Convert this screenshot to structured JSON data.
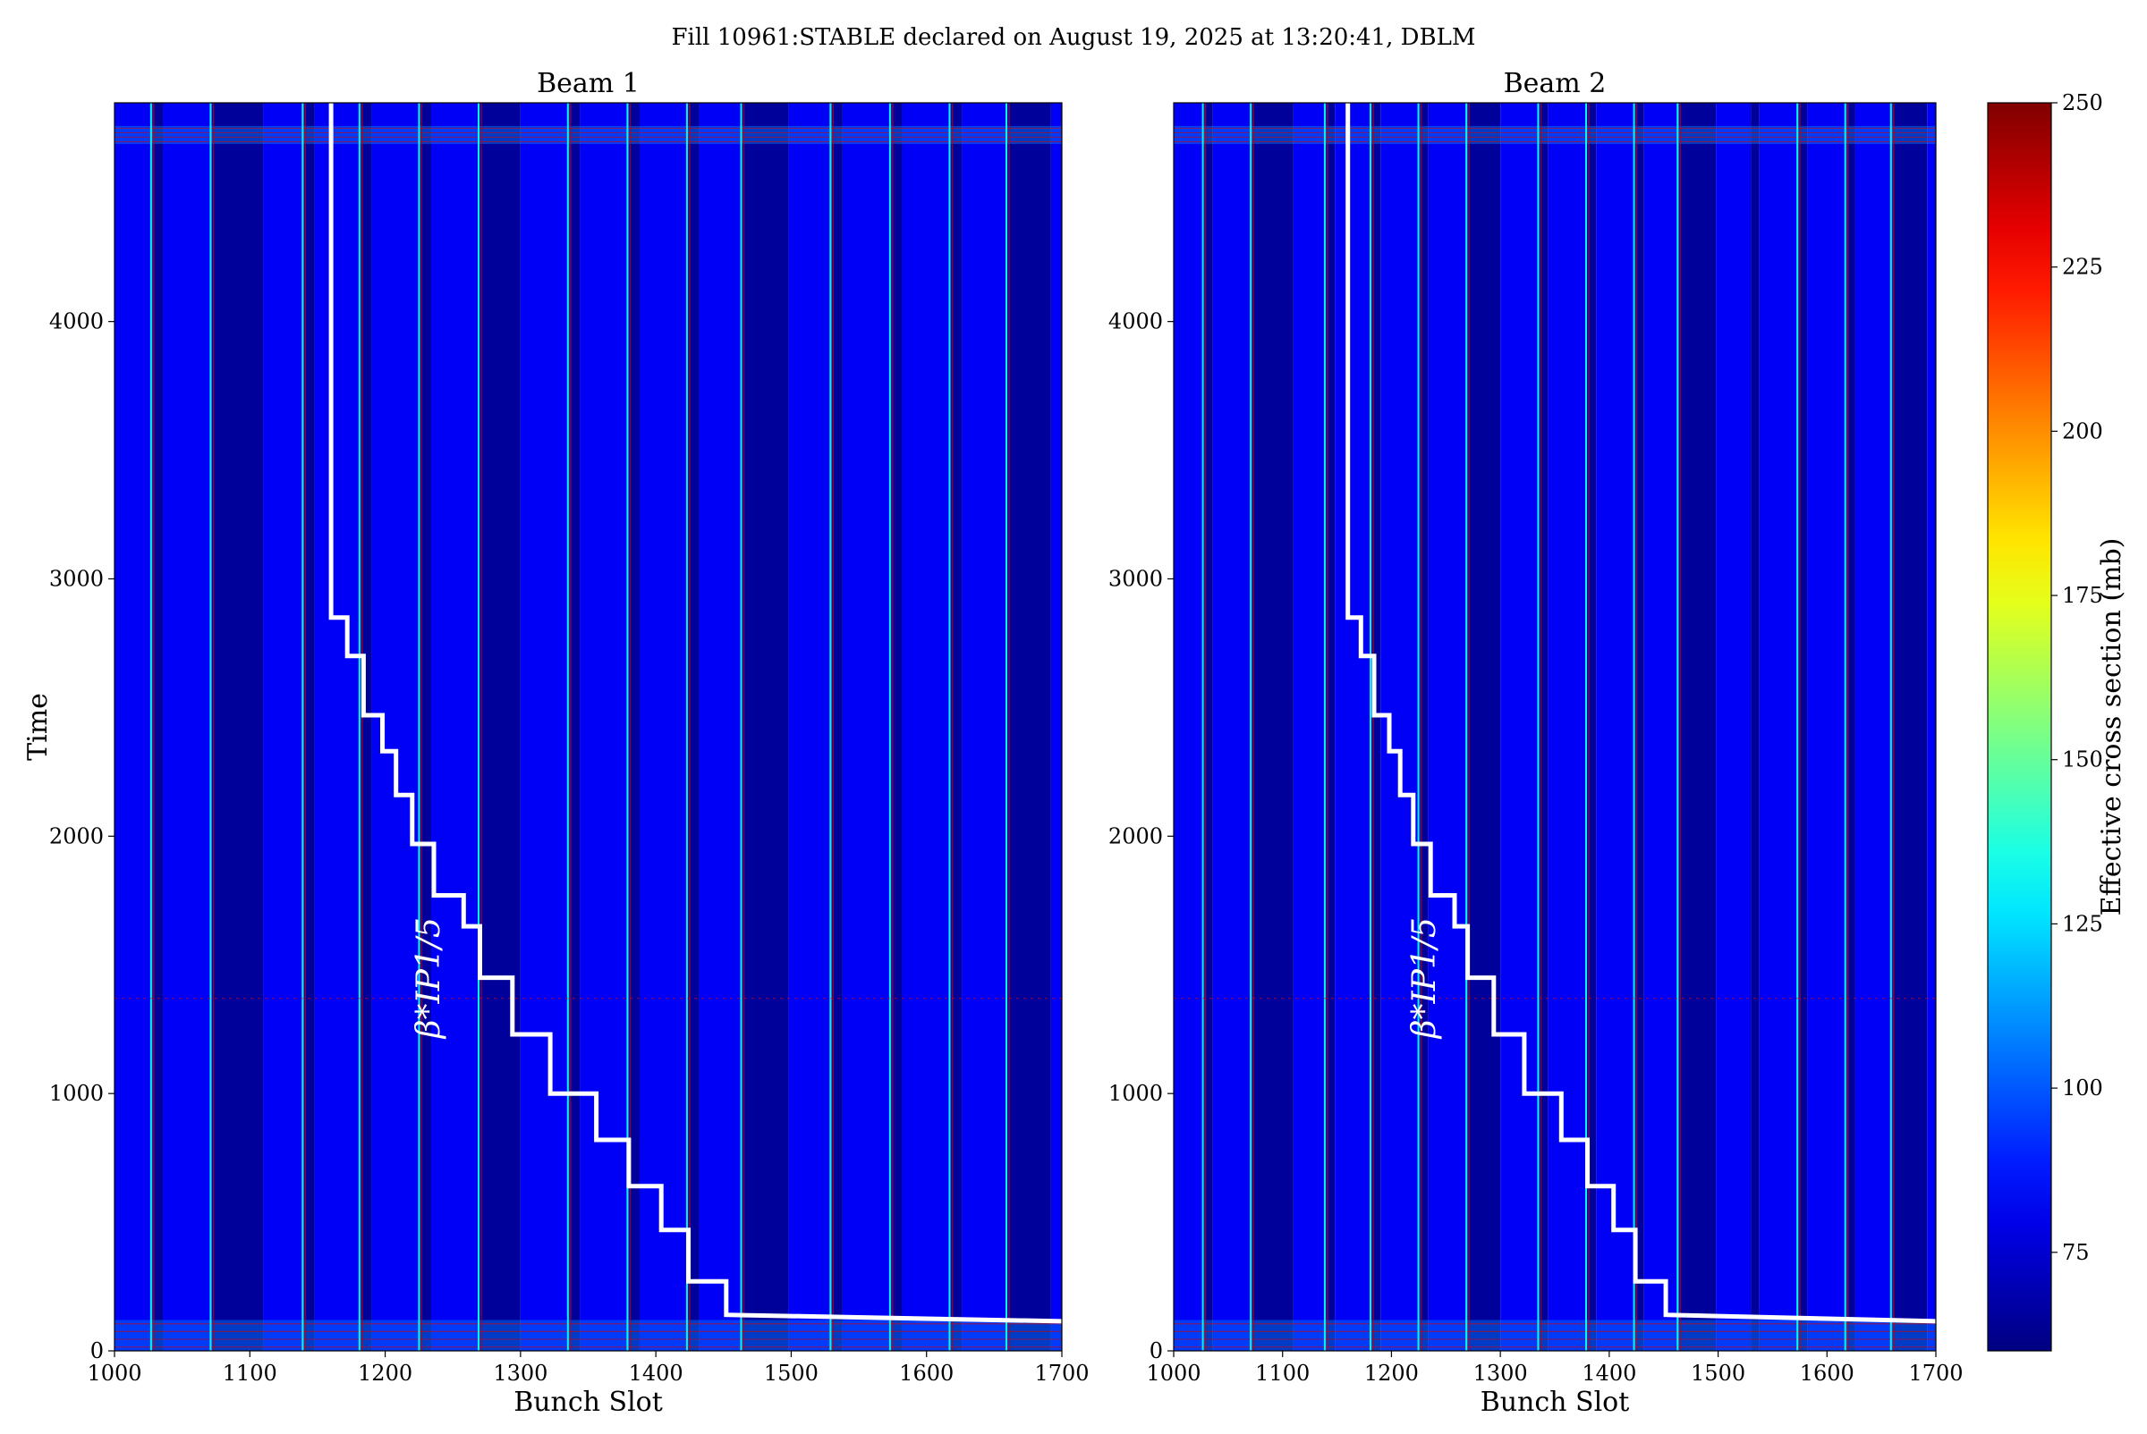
{
  "chart_data": {
    "type": "heatmap",
    "suptitle": "Fill 10961:STABLE declared on August 19, 2025 at 13:20:41, DBLM",
    "ylabel": "Time",
    "xlabel": "Bunch Slot",
    "xlim": [
      1000,
      1700
    ],
    "ylim": [
      0,
      4850
    ],
    "x_ticks": [
      1000,
      1100,
      1200,
      1300,
      1400,
      1500,
      1600,
      1700
    ],
    "y_ticks": [
      0,
      1000,
      2000,
      3000,
      4000
    ],
    "colorbar": {
      "label": "Effective cross section (mb)",
      "range": [
        60,
        250
      ],
      "ticks": [
        75,
        100,
        125,
        150,
        175,
        200,
        225,
        250
      ],
      "colormap": "jet"
    },
    "bright_time_bands": [
      [
        0,
        120
      ],
      [
        4690,
        4760
      ]
    ],
    "stripes": [
      {
        "x0": 1000,
        "x1": 1028,
        "value": 82
      },
      {
        "x0": 1028,
        "x1": 1036,
        "value": 65
      },
      {
        "x0": 1036,
        "x1": 1072,
        "value": 82
      },
      {
        "x0": 1072,
        "x1": 1110,
        "value": 65
      },
      {
        "x0": 1110,
        "x1": 1140,
        "value": 82
      },
      {
        "x0": 1140,
        "x1": 1148,
        "value": 65
      },
      {
        "x0": 1148,
        "x1": 1182,
        "value": 82
      },
      {
        "x0": 1182,
        "x1": 1190,
        "value": 65
      },
      {
        "x0": 1190,
        "x1": 1226,
        "value": 82
      },
      {
        "x0": 1226,
        "x1": 1234,
        "value": 65
      },
      {
        "x0": 1234,
        "x1": 1270,
        "value": 82
      },
      {
        "x0": 1270,
        "x1": 1300,
        "value": 65
      },
      {
        "x0": 1300,
        "x1": 1336,
        "value": 82
      },
      {
        "x0": 1336,
        "x1": 1344,
        "value": 65
      },
      {
        "x0": 1344,
        "x1": 1380,
        "value": 82
      },
      {
        "x0": 1380,
        "x1": 1388,
        "value": 65
      },
      {
        "x0": 1388,
        "x1": 1424,
        "value": 82
      },
      {
        "x0": 1424,
        "x1": 1432,
        "value": 65
      },
      {
        "x0": 1432,
        "x1": 1464,
        "value": 82
      },
      {
        "x0": 1464,
        "x1": 1498,
        "value": 65
      },
      {
        "x0": 1498,
        "x1": 1530,
        "value": 82
      },
      {
        "x0": 1530,
        "x1": 1538,
        "value": 65
      },
      {
        "x0": 1538,
        "x1": 1574,
        "value": 82
      },
      {
        "x0": 1574,
        "x1": 1582,
        "value": 65
      },
      {
        "x0": 1582,
        "x1": 1618,
        "value": 82
      },
      {
        "x0": 1618,
        "x1": 1626,
        "value": 65
      },
      {
        "x0": 1626,
        "x1": 1660,
        "value": 82
      },
      {
        "x0": 1660,
        "x1": 1692,
        "value": 65
      },
      {
        "x0": 1692,
        "x1": 1700,
        "value": 82
      }
    ],
    "panels": [
      {
        "title": "Beam 1",
        "hot_columns": [
          1028,
          1072,
          1140,
          1182,
          1226,
          1270,
          1336,
          1380,
          1424,
          1464,
          1530,
          1574,
          1618,
          1660
        ],
        "beta_label": "β*IP1/5",
        "beta_label_at": {
          "x": 1240,
          "y": 1450
        },
        "beta_step": [
          {
            "x": 1160,
            "y": 4850
          },
          {
            "x": 1160,
            "y": 2850
          },
          {
            "x": 1172,
            "y": 2850
          },
          {
            "x": 1172,
            "y": 2700
          },
          {
            "x": 1184,
            "y": 2700
          },
          {
            "x": 1184,
            "y": 2470
          },
          {
            "x": 1198,
            "y": 2470
          },
          {
            "x": 1198,
            "y": 2330
          },
          {
            "x": 1208,
            "y": 2330
          },
          {
            "x": 1208,
            "y": 2160
          },
          {
            "x": 1220,
            "y": 2160
          },
          {
            "x": 1220,
            "y": 1970
          },
          {
            "x": 1236,
            "y": 1970
          },
          {
            "x": 1236,
            "y": 1770
          },
          {
            "x": 1258,
            "y": 1770
          },
          {
            "x": 1258,
            "y": 1650
          },
          {
            "x": 1270,
            "y": 1650
          },
          {
            "x": 1270,
            "y": 1450
          },
          {
            "x": 1294,
            "y": 1450
          },
          {
            "x": 1294,
            "y": 1230
          },
          {
            "x": 1322,
            "y": 1230
          },
          {
            "x": 1322,
            "y": 1000
          },
          {
            "x": 1356,
            "y": 1000
          },
          {
            "x": 1356,
            "y": 820
          },
          {
            "x": 1380,
            "y": 820
          },
          {
            "x": 1380,
            "y": 640
          },
          {
            "x": 1404,
            "y": 640
          },
          {
            "x": 1404,
            "y": 470
          },
          {
            "x": 1424,
            "y": 470
          },
          {
            "x": 1424,
            "y": 270
          },
          {
            "x": 1452,
            "y": 270
          },
          {
            "x": 1452,
            "y": 140
          },
          {
            "x": 1700,
            "y": 115
          }
        ]
      },
      {
        "title": "Beam 2",
        "hot_columns": [
          1028,
          1072,
          1140,
          1182,
          1226,
          1270,
          1336,
          1380,
          1424,
          1464,
          1574,
          1618,
          1660
        ],
        "beta_label": "β*IP1/5",
        "beta_label_at": {
          "x": 1240,
          "y": 1450
        },
        "beta_step": [
          {
            "x": 1160,
            "y": 4850
          },
          {
            "x": 1160,
            "y": 2850
          },
          {
            "x": 1172,
            "y": 2850
          },
          {
            "x": 1172,
            "y": 2700
          },
          {
            "x": 1184,
            "y": 2700
          },
          {
            "x": 1184,
            "y": 2470
          },
          {
            "x": 1198,
            "y": 2470
          },
          {
            "x": 1198,
            "y": 2330
          },
          {
            "x": 1208,
            "y": 2330
          },
          {
            "x": 1208,
            "y": 2160
          },
          {
            "x": 1220,
            "y": 2160
          },
          {
            "x": 1220,
            "y": 1970
          },
          {
            "x": 1236,
            "y": 1970
          },
          {
            "x": 1236,
            "y": 1770
          },
          {
            "x": 1258,
            "y": 1770
          },
          {
            "x": 1258,
            "y": 1650
          },
          {
            "x": 1270,
            "y": 1650
          },
          {
            "x": 1270,
            "y": 1450
          },
          {
            "x": 1294,
            "y": 1450
          },
          {
            "x": 1294,
            "y": 1230
          },
          {
            "x": 1322,
            "y": 1230
          },
          {
            "x": 1322,
            "y": 1000
          },
          {
            "x": 1356,
            "y": 1000
          },
          {
            "x": 1356,
            "y": 820
          },
          {
            "x": 1380,
            "y": 820
          },
          {
            "x": 1380,
            "y": 640
          },
          {
            "x": 1404,
            "y": 640
          },
          {
            "x": 1404,
            "y": 470
          },
          {
            "x": 1424,
            "y": 470
          },
          {
            "x": 1424,
            "y": 270
          },
          {
            "x": 1452,
            "y": 270
          },
          {
            "x": 1452,
            "y": 140
          },
          {
            "x": 1700,
            "y": 115
          }
        ]
      }
    ]
  }
}
